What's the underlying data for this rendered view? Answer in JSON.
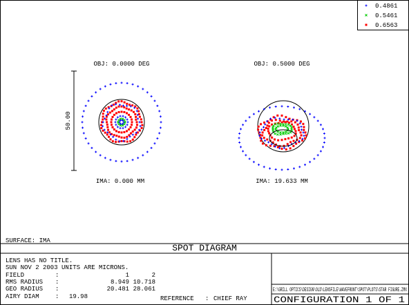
{
  "legend": [
    {
      "label": "0.4861",
      "color": "#0000ff"
    },
    {
      "label": "0.5461",
      "color": "#00cc00"
    },
    {
      "label": "0.6563",
      "color": "#ff0000"
    }
  ],
  "fields": [
    {
      "object": "OBJ: 0.0000 DEG",
      "image": "IMA: 0.000 MM"
    },
    {
      "object": "OBJ: 0.5000 DEG",
      "image": "IMA: 19.633 MM"
    }
  ],
  "scale_label": "50.00",
  "surface": "SURFACE: IMA",
  "title": "SPOT DIAGRAM",
  "info": [
    "LENS HAS NO TITLE.",
    "SUN NOV 2 2003  UNITS ARE MICRONS."
  ],
  "separator": ":",
  "table": {
    "rows": [
      [
        "FIELD",
        "1",
        "2"
      ],
      [
        "RMS RADIUS",
        "8.949",
        "10.718"
      ],
      [
        "GEO RADIUS",
        "20.481",
        "28.061"
      ],
      [
        "AIRY DIAM",
        "19.98"
      ]
    ],
    "reference": {
      "label": "REFERENCE",
      "value": "CHIEF RAY"
    }
  },
  "file": "E:\\GRILL OPTICS\\DESIGN\\OLD\\LENSFILE\\WAVEFRONT\\SPOT\\PLOTS\\STAR FIGURE.ZMX",
  "configuration": "CONFIGURATION 1 OF 1"
}
